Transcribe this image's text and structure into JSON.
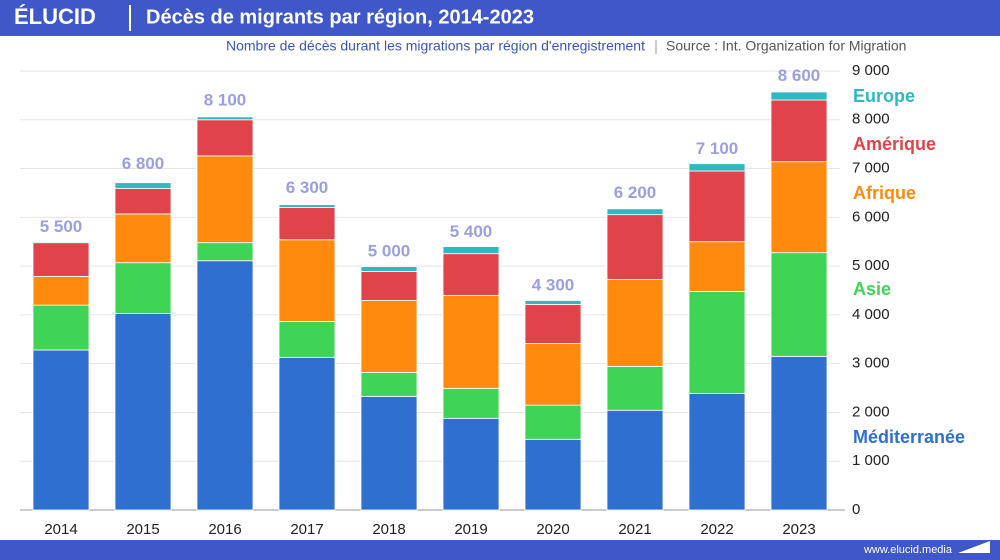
{
  "brand": "ÉLUCID",
  "footer": "www.elucid.media",
  "chart_data": {
    "type": "stacked-bar",
    "title": "Décès de migrants par région, 2014-2023",
    "subtitle": "Nombre de décès durant les migrations par région d'enregistrement",
    "source": "Source : Int. Organization for Migration",
    "categories": [
      "2014",
      "2015",
      "2016",
      "2017",
      "2018",
      "2019",
      "2020",
      "2021",
      "2022",
      "2023"
    ],
    "series": [
      {
        "name": "Méditerranée",
        "color": "#2f6fd0",
        "values": [
          3280,
          4030,
          5110,
          3130,
          2330,
          1880,
          1450,
          2045,
          2390,
          3150
        ]
      },
      {
        "name": "Asie",
        "color": "#3fd455",
        "values": [
          920,
          1040,
          370,
          735,
          490,
          615,
          700,
          900,
          2090,
          2125
        ]
      },
      {
        "name": "Afrique",
        "color": "#ff8a0d",
        "values": [
          590,
          1000,
          1780,
          1675,
          1475,
          1905,
          1265,
          1780,
          1020,
          1865
        ]
      },
      {
        "name": "Amérique",
        "color": "#e0434a",
        "values": [
          690,
          520,
          740,
          660,
          595,
          855,
          800,
          1330,
          1450,
          1265
        ]
      },
      {
        "name": "Europe",
        "color": "#2fb8c0",
        "values": [
          20,
          120,
          60,
          60,
          100,
          145,
          80,
          120,
          150,
          165
        ]
      }
    ],
    "totals": {
      "values": [
        5500,
        6800,
        8100,
        6300,
        5000,
        5400,
        4300,
        6200,
        7100,
        8600
      ],
      "value_labels": [
        "5 500",
        "6 800",
        "8 100",
        "6 300",
        "5 000",
        "5 400",
        "4 300",
        "6 200",
        "7 100",
        "8 600"
      ]
    },
    "ylim": [
      0,
      9000
    ],
    "yticks": [
      0,
      {
        "value": 1000,
        "label": "1 000"
      },
      {
        "value": 2000,
        "label": "2 000"
      },
      {
        "value": 3000,
        "label": "3 000"
      },
      {
        "value": 4000,
        "label": "4 000"
      },
      {
        "value": 5000,
        "label": "5 000"
      },
      {
        "value": 6000,
        "label": "6 000"
      },
      {
        "value": 7000,
        "label": "7 000"
      },
      {
        "value": 8000,
        "label": "8 000"
      },
      {
        "value": 9000,
        "label": "9 000"
      }
    ],
    "grid": true
  }
}
